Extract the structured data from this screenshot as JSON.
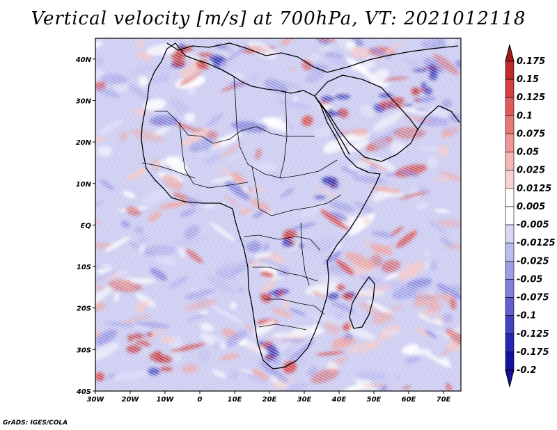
{
  "title": "Vertical velocity [m/s] at 700hPa, VT: 2021012118",
  "credit": "GrADS: IGES/COLA",
  "chart_data": {
    "type": "heatmap",
    "variable": "Vertical velocity",
    "units": "m/s",
    "level": "700hPa",
    "valid_time": "2021012118",
    "x_ticks": [
      "30W",
      "20W",
      "10W",
      "0",
      "10E",
      "20E",
      "30E",
      "40E",
      "50E",
      "60E",
      "70E"
    ],
    "x_values": [
      -30,
      -20,
      -10,
      0,
      10,
      20,
      30,
      40,
      50,
      60,
      70
    ],
    "y_ticks": [
      "40N",
      "30N",
      "20N",
      "10N",
      "EQ",
      "10S",
      "20S",
      "30S",
      "40S"
    ],
    "y_values": [
      40,
      30,
      20,
      10,
      0,
      -10,
      -20,
      -30,
      -40
    ],
    "xlim": [
      -30,
      75
    ],
    "ylim": [
      -40,
      45
    ],
    "colorbar": {
      "levels": [
        "0.175",
        "0.15",
        "0.125",
        "0.1",
        "0.075",
        "0.05",
        "0.025",
        "0.0125",
        "0.005",
        "-0.005",
        "-0.0125",
        "-0.025",
        "-0.05",
        "-0.075",
        "-0.1",
        "-0.125",
        "-0.175",
        "-0.2"
      ],
      "colors": [
        "#a81818",
        "#c02a2a",
        "#d24040",
        "#df5b5b",
        "#e87878",
        "#ef9797",
        "#f5b6b6",
        "#f9d2d2",
        "#ffffff",
        "#ffffff",
        "#d8d8f6",
        "#bcbcef",
        "#9e9ee6",
        "#8080dc",
        "#6161d0",
        "#4343c2",
        "#2626b0",
        "#12129a"
      ],
      "extend": "both"
    }
  }
}
